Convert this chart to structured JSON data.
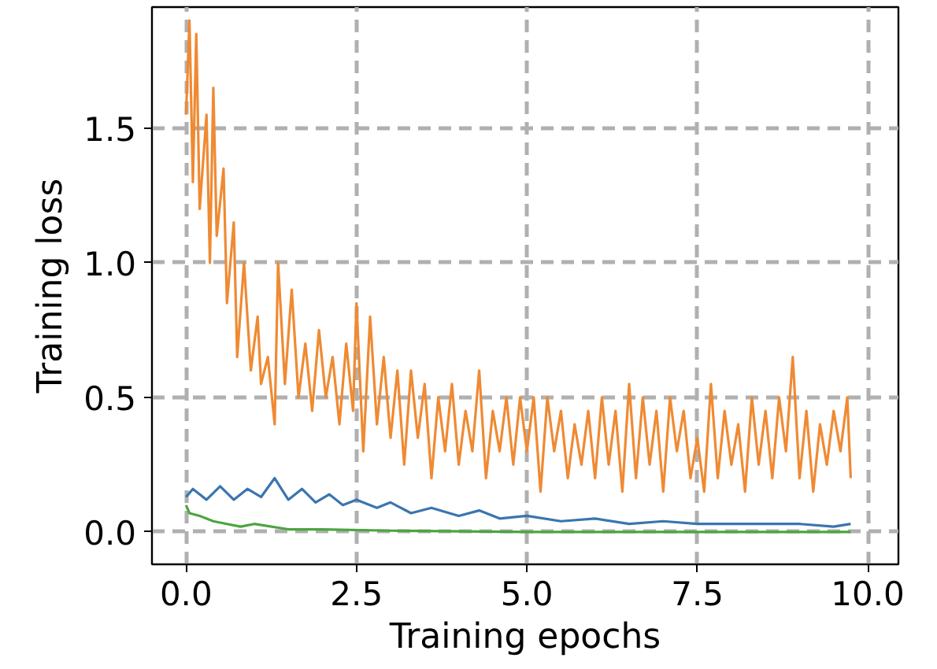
{
  "chart_data": {
    "type": "line",
    "xlabel": "Training epochs",
    "ylabel": "Training loss",
    "xlim": [
      -0.5,
      10.45
    ],
    "ylim": [
      -0.12,
      1.95
    ],
    "xticks": [
      {
        "value": 0,
        "label": "0.0"
      },
      2.5,
      {
        "value": 5,
        "label": "5.0"
      },
      7.5,
      {
        "value": 10,
        "label": "10.0"
      }
    ],
    "yticks": [
      {
        "value": 0,
        "label": "0.0"
      },
      0.5,
      {
        "value": 1,
        "label": "1.0"
      },
      1.5
    ],
    "grid": true,
    "line_style": "solid",
    "marker": "none",
    "series": [
      {
        "color": "#ef8a33",
        "x": [
          0,
          0.05,
          0.1,
          0.15,
          0.2,
          0.3,
          0.35,
          0.4,
          0.45,
          0.55,
          0.6,
          0.7,
          0.75,
          0.85,
          0.95,
          1.05,
          1.1,
          1.2,
          1.3,
          1.35,
          1.45,
          1.55,
          1.65,
          1.75,
          1.85,
          1.95,
          2.05,
          2.15,
          2.25,
          2.35,
          2.45,
          2.5,
          2.6,
          2.7,
          2.8,
          2.9,
          3.0,
          3.1,
          3.2,
          3.3,
          3.4,
          3.5,
          3.6,
          3.7,
          3.8,
          3.9,
          4.0,
          4.1,
          4.2,
          4.3,
          4.4,
          4.5,
          4.6,
          4.7,
          4.8,
          4.9,
          5.0,
          5.1,
          5.2,
          5.3,
          5.4,
          5.5,
          5.6,
          5.7,
          5.8,
          5.9,
          6.0,
          6.1,
          6.2,
          6.3,
          6.4,
          6.5,
          6.6,
          6.7,
          6.8,
          6.9,
          7.0,
          7.1,
          7.2,
          7.3,
          7.4,
          7.5,
          7.6,
          7.7,
          7.8,
          7.9,
          8.0,
          8.1,
          8.2,
          8.3,
          8.4,
          8.5,
          8.6,
          8.7,
          8.8,
          8.9,
          9.0,
          9.1,
          9.2,
          9.3,
          9.4,
          9.5,
          9.6,
          9.7,
          9.75
        ],
        "values": [
          1.55,
          1.9,
          1.3,
          1.85,
          1.2,
          1.55,
          1.0,
          1.65,
          1.1,
          1.35,
          0.85,
          1.15,
          0.65,
          1.0,
          0.6,
          0.8,
          0.55,
          0.65,
          0.4,
          1.0,
          0.55,
          0.9,
          0.5,
          0.7,
          0.45,
          0.75,
          0.5,
          0.65,
          0.4,
          0.7,
          0.45,
          0.85,
          0.3,
          0.8,
          0.4,
          0.65,
          0.35,
          0.6,
          0.25,
          0.6,
          0.35,
          0.55,
          0.2,
          0.5,
          0.3,
          0.55,
          0.25,
          0.45,
          0.3,
          0.6,
          0.2,
          0.45,
          0.3,
          0.5,
          0.25,
          0.5,
          0.3,
          0.5,
          0.15,
          0.5,
          0.3,
          0.45,
          0.2,
          0.4,
          0.25,
          0.45,
          0.2,
          0.5,
          0.25,
          0.45,
          0.15,
          0.55,
          0.2,
          0.5,
          0.25,
          0.45,
          0.15,
          0.5,
          0.3,
          0.45,
          0.2,
          0.35,
          0.15,
          0.55,
          0.2,
          0.45,
          0.25,
          0.4,
          0.15,
          0.5,
          0.25,
          0.45,
          0.2,
          0.5,
          0.3,
          0.65,
          0.2,
          0.45,
          0.15,
          0.4,
          0.25,
          0.45,
          0.3,
          0.5,
          0.2
        ]
      },
      {
        "color": "#3a75b0",
        "x": [
          0,
          0.1,
          0.3,
          0.5,
          0.7,
          0.9,
          1.1,
          1.3,
          1.5,
          1.7,
          1.9,
          2.1,
          2.3,
          2.5,
          2.8,
          3.0,
          3.3,
          3.6,
          4.0,
          4.3,
          4.6,
          5.0,
          5.5,
          6.0,
          6.5,
          7.0,
          7.5,
          8.0,
          8.5,
          9.0,
          9.5,
          9.75
        ],
        "values": [
          0.13,
          0.16,
          0.12,
          0.17,
          0.12,
          0.16,
          0.13,
          0.2,
          0.12,
          0.16,
          0.11,
          0.14,
          0.1,
          0.12,
          0.09,
          0.11,
          0.07,
          0.09,
          0.06,
          0.08,
          0.05,
          0.06,
          0.04,
          0.05,
          0.03,
          0.04,
          0.03,
          0.03,
          0.03,
          0.03,
          0.02,
          0.03
        ]
      },
      {
        "color": "#4ca440",
        "x": [
          0,
          0.05,
          0.2,
          0.4,
          0.6,
          0.8,
          1.0,
          1.5,
          2.0,
          3.0,
          5.0,
          9.75
        ],
        "values": [
          0.1,
          0.07,
          0.06,
          0.04,
          0.03,
          0.02,
          0.03,
          0.01,
          0.01,
          0.005,
          0.0,
          0.0
        ]
      }
    ]
  }
}
